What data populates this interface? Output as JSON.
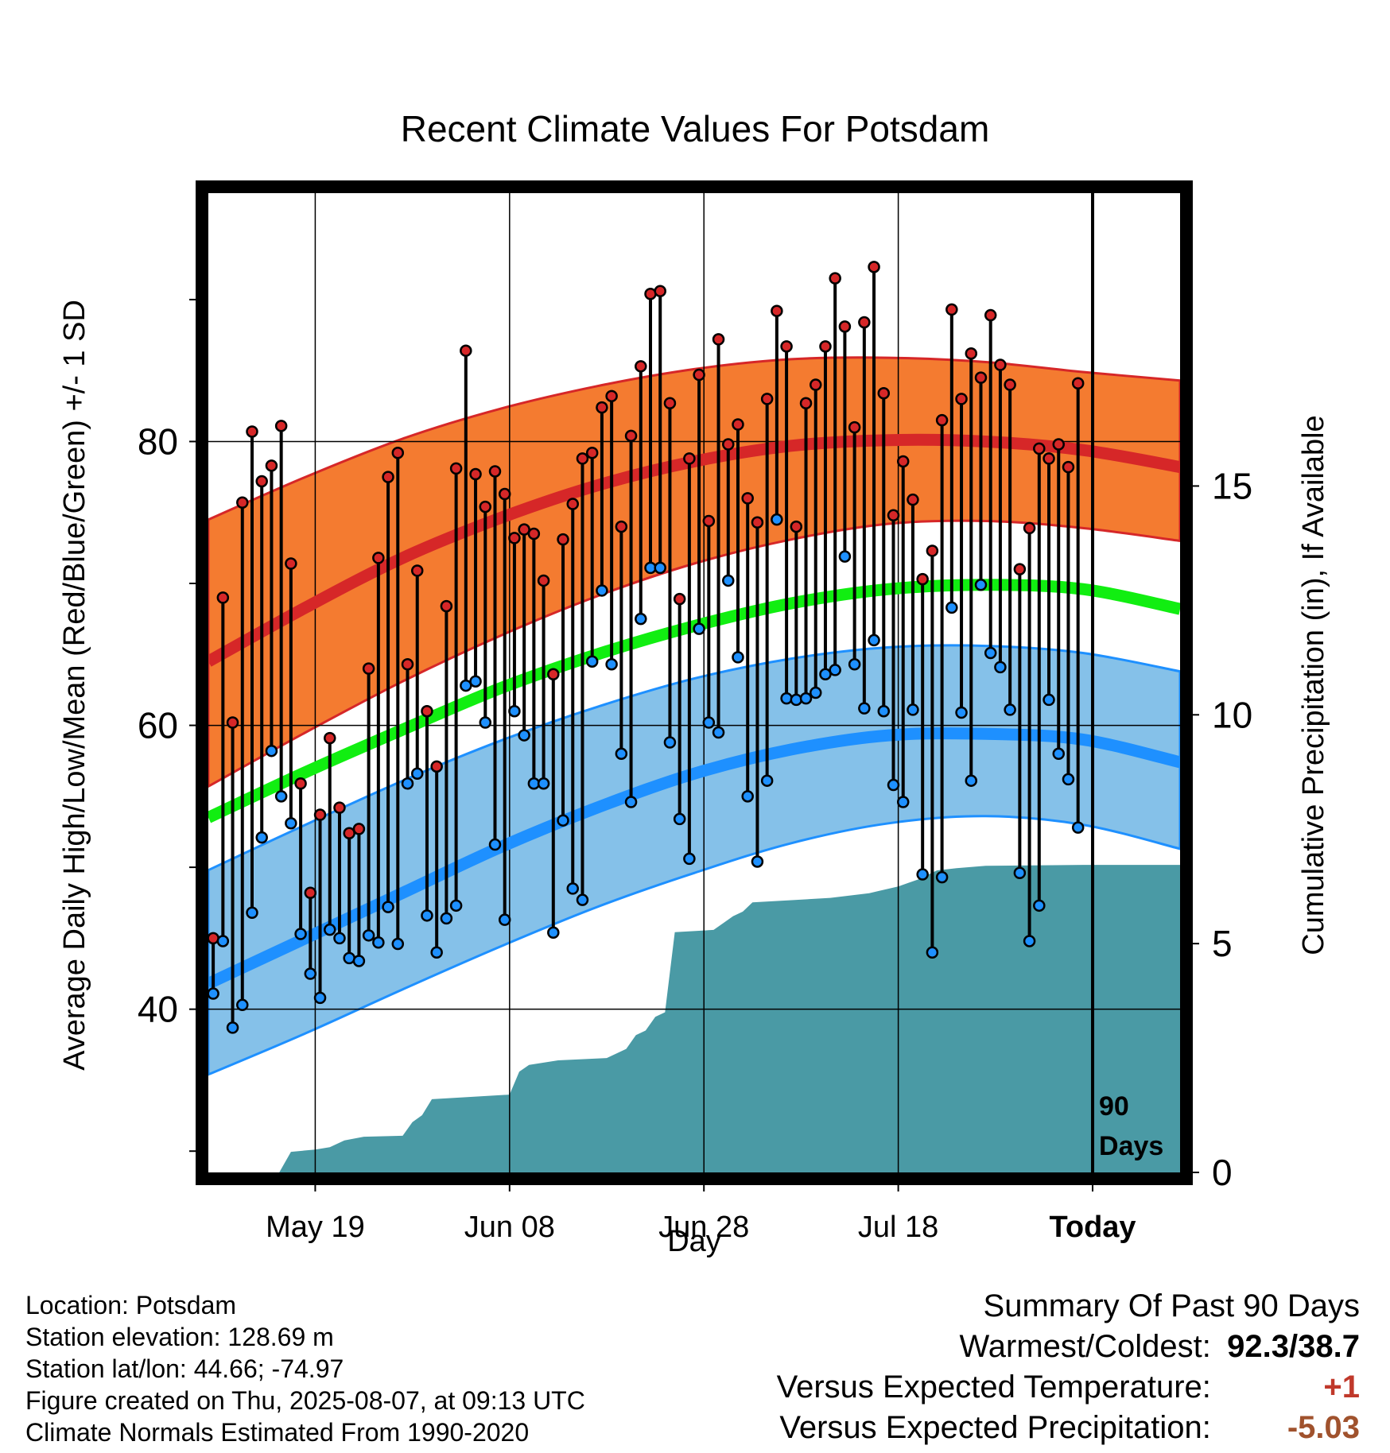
{
  "chart_data": {
    "type": "line",
    "title": "Recent Climate Values For Potsdam",
    "xlabel": "Day",
    "ylabel_left": "Average Daily High/Low/Mean (Red/Blue/Green) +/- 1 SD",
    "ylabel_right": "Cumulative Precipitation (in), If Available",
    "x_ticks": [
      {
        "day": 11,
        "label": "May 19"
      },
      {
        "day": 31,
        "label": "Jun 08"
      },
      {
        "day": 51,
        "label": "Jun 28"
      },
      {
        "day": 71,
        "label": "Jul 18"
      },
      {
        "day": 91,
        "label": "Today"
      }
    ],
    "xlim": [
      0,
      100
    ],
    "ylim_left": [
      28.5,
      97.5
    ],
    "ylim_right": [
      0,
      21.4
    ],
    "y_ticks_left": [
      {
        "value": 40,
        "label": "40"
      },
      {
        "value": 60,
        "label": "60"
      },
      {
        "value": 80,
        "label": "80"
      }
    ],
    "y_minor_ticks_left": [
      30,
      50,
      70,
      90
    ],
    "y_ticks_right": [
      {
        "value": 0,
        "label": "0"
      },
      {
        "value": 5,
        "label": "5"
      },
      {
        "value": 10,
        "label": "10"
      },
      {
        "value": 15,
        "label": "15"
      }
    ],
    "today_marker": {
      "day": 91,
      "label_line1": "90",
      "label_line2": "Days"
    },
    "normals": {
      "days": [
        0,
        10,
        20,
        30,
        40,
        50,
        60,
        70,
        80,
        90,
        100
      ],
      "high_mean": [
        64.5,
        68.3,
        71.8,
        74.6,
        76.9,
        78.6,
        79.7,
        80.1,
        80.0,
        79.4,
        78.2
      ],
      "high_upper": [
        74.5,
        77.5,
        80.2,
        82.3,
        83.9,
        85.1,
        85.8,
        85.9,
        85.6,
        84.9,
        84.3
      ],
      "high_lower": [
        55.7,
        59.5,
        63.1,
        66.3,
        69.1,
        71.4,
        73.1,
        74.2,
        74.4,
        73.9,
        73.0
      ],
      "mean": [
        53.5,
        56.7,
        59.7,
        62.6,
        65.0,
        67.0,
        68.6,
        69.6,
        69.9,
        69.6,
        68.2
      ],
      "low_mean": [
        41.8,
        45.0,
        48.2,
        51.4,
        54.2,
        56.6,
        58.3,
        59.3,
        59.4,
        59.0,
        57.4
      ],
      "low_upper": [
        49.8,
        53.0,
        56.1,
        58.9,
        61.3,
        63.3,
        64.7,
        65.5,
        65.6,
        65.1,
        63.8
      ],
      "low_lower": [
        35.4,
        38.3,
        41.4,
        44.4,
        47.2,
        49.6,
        51.7,
        53.1,
        53.6,
        53.0,
        51.3
      ]
    },
    "series": [
      {
        "name": "Daily High",
        "color": "#d62728",
        "values": [
          45.0,
          69.0,
          60.2,
          75.7,
          80.7,
          77.2,
          78.3,
          81.1,
          71.4,
          55.9,
          48.2,
          53.7,
          59.1,
          54.2,
          52.4,
          52.7,
          64.0,
          71.8,
          77.5,
          79.2,
          64.3,
          70.9,
          61.0,
          57.1,
          68.4,
          78.1,
          86.4,
          77.7,
          75.4,
          77.9,
          76.3,
          73.2,
          73.8,
          73.5,
          70.2,
          63.6,
          73.1,
          75.6,
          78.8,
          79.2,
          82.4,
          83.2,
          74.0,
          80.4,
          85.3,
          90.4,
          90.6,
          82.7,
          68.9,
          78.8,
          84.7,
          74.4,
          87.2,
          79.8,
          81.2,
          76.0,
          74.3,
          83.0,
          89.2,
          86.7,
          74.0,
          82.7,
          84.0,
          86.7,
          91.5,
          88.1,
          81.0,
          88.4,
          92.3,
          83.4,
          74.8,
          78.6,
          75.9,
          70.3,
          72.3,
          81.5,
          89.3,
          83.0,
          86.2,
          84.5,
          88.9,
          85.4,
          84.0,
          71.0,
          73.9,
          79.5,
          78.8,
          79.8,
          78.2,
          84.1
        ]
      },
      {
        "name": "Daily Low",
        "color": "#1e90ff",
        "values": [
          41.1,
          44.8,
          38.7,
          40.3,
          46.8,
          52.1,
          58.2,
          55.0,
          53.1,
          45.3,
          42.5,
          40.8,
          45.6,
          45.0,
          43.6,
          43.4,
          45.2,
          44.7,
          47.2,
          44.6,
          55.9,
          56.6,
          46.6,
          44.0,
          46.4,
          47.3,
          62.8,
          63.1,
          60.2,
          51.6,
          46.3,
          61.0,
          59.3,
          55.9,
          55.9,
          45.4,
          53.3,
          48.5,
          47.7,
          64.5,
          69.5,
          64.3,
          58.0,
          54.6,
          67.5,
          71.1,
          71.1,
          58.8,
          53.4,
          50.6,
          66.8,
          60.2,
          59.5,
          70.2,
          64.8,
          55.0,
          50.4,
          56.1,
          74.5,
          61.9,
          61.8,
          61.9,
          62.3,
          63.6,
          63.9,
          71.9,
          64.3,
          61.2,
          66.0,
          61.0,
          55.8,
          54.6,
          61.1,
          49.5,
          44.0,
          49.3,
          68.3,
          60.9,
          56.1,
          69.9,
          65.1,
          64.1,
          61.1,
          49.6,
          44.8,
          47.3,
          61.8,
          58.0,
          56.2,
          52.8
        ]
      },
      {
        "name": "Cumulative Precipitation",
        "color": "#4a9aa5",
        "points": [
          [
            7.3,
            0
          ],
          [
            8.5,
            0.45
          ],
          [
            11,
            0.5
          ],
          [
            12.5,
            0.55
          ],
          [
            14,
            0.7
          ],
          [
            16,
            0.78
          ],
          [
            20,
            0.8
          ],
          [
            21,
            1.1
          ],
          [
            22,
            1.25
          ],
          [
            23,
            1.6
          ],
          [
            27,
            1.65
          ],
          [
            31,
            1.7
          ],
          [
            32,
            2.2
          ],
          [
            33,
            2.35
          ],
          [
            36,
            2.45
          ],
          [
            41,
            2.5
          ],
          [
            43,
            2.7
          ],
          [
            44,
            3.0
          ],
          [
            45,
            3.1
          ],
          [
            46,
            3.4
          ],
          [
            47,
            3.5
          ],
          [
            48,
            5.25
          ],
          [
            52,
            5.3
          ],
          [
            53,
            5.45
          ],
          [
            54,
            5.6
          ],
          [
            55,
            5.7
          ],
          [
            56,
            5.9
          ],
          [
            60,
            5.95
          ],
          [
            64,
            6.0
          ],
          [
            68,
            6.1
          ],
          [
            69,
            6.15
          ],
          [
            71,
            6.25
          ],
          [
            73,
            6.4
          ],
          [
            75,
            6.6
          ],
          [
            77,
            6.65
          ],
          [
            80,
            6.7
          ],
          [
            90,
            6.72
          ],
          [
            100,
            6.72
          ]
        ]
      }
    ]
  },
  "footer": {
    "location": "Location: Potsdam",
    "elevation": "Station elevation: 128.69 m",
    "latlon": "Station lat/lon: 44.66; -74.97",
    "created": "Figure created on Thu, 2025-08-07, at 09:13 UTC",
    "normals_note": "Climate Normals Estimated From 1990-2020"
  },
  "summary": {
    "title": "Summary Of Past 90 Days",
    "warmest_label": "Warmest/Coldest:",
    "warmest_value": "92.3/38.7",
    "temp_label": "Versus Expected Temperature:",
    "temp_value": "+1",
    "precip_label": "Versus Expected Precipitation:",
    "precip_value": "-5.03"
  },
  "colors": {
    "high_band": "#f47b30",
    "high_line": "#d62728",
    "low_band": "#85c1e9",
    "low_line": "#1e90ff",
    "mean_line": "#11ee11",
    "precip": "#4a9aa5",
    "precip_value": "#a0522d",
    "temp_value": "#c0392b"
  }
}
